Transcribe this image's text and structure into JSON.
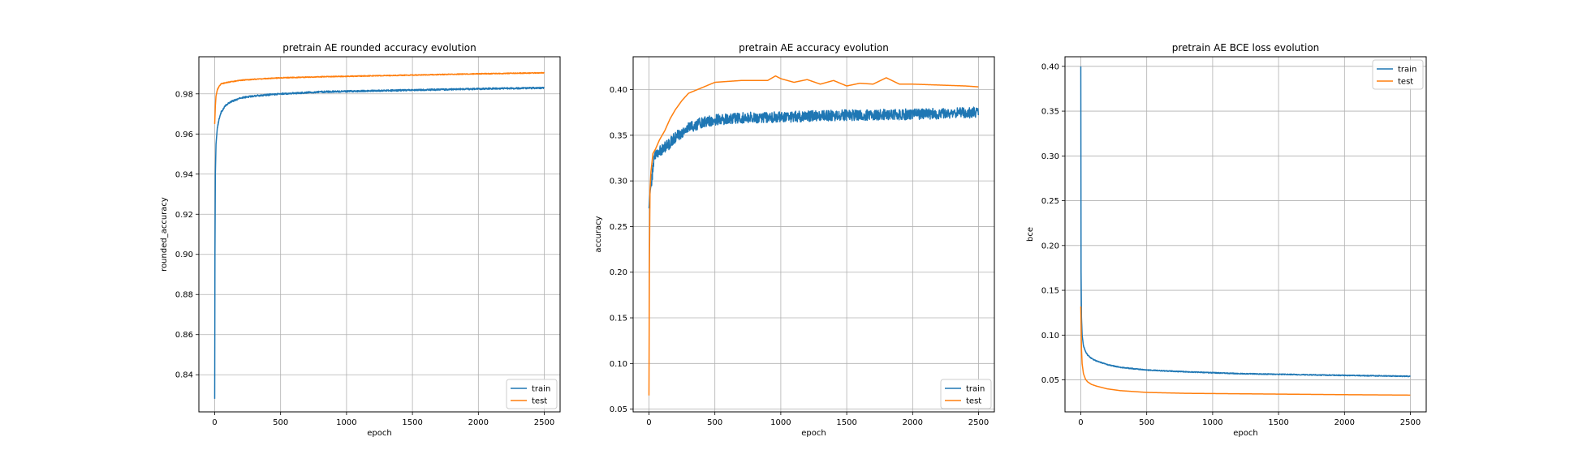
{
  "colors": {
    "train": "#1f77b4",
    "test": "#ff7f0e",
    "grid": "#b0b0b0"
  },
  "chart_data": [
    {
      "type": "line",
      "title": "pretrain AE rounded accuracy evolution",
      "xlabel": "epoch",
      "ylabel": "rounded_accuracy",
      "xlim": [
        -120,
        2620
      ],
      "ylim": [
        0.8215,
        0.9985
      ],
      "xticks": [
        0,
        500,
        1000,
        1500,
        2000,
        2500
      ],
      "xtick_labels": [
        "0",
        "500",
        "1000",
        "1500",
        "2000",
        "2500"
      ],
      "yticks": [
        0.84,
        0.86,
        0.88,
        0.9,
        0.92,
        0.94,
        0.96,
        0.98
      ],
      "ytick_labels": [
        "0.84",
        "0.86",
        "0.88",
        "0.90",
        "0.92",
        "0.94",
        "0.96",
        "0.98"
      ],
      "grid": true,
      "legend": {
        "position": "bottom-right",
        "entries": [
          "train",
          "test"
        ]
      },
      "series": [
        {
          "name": "train",
          "noise": 0.0004,
          "x": [
            0,
            2,
            5,
            10,
            20,
            35,
            50,
            80,
            120,
            200,
            300,
            500,
            800,
            1200,
            1600,
            2000,
            2500
          ],
          "y": [
            0.828,
            0.9,
            0.94,
            0.955,
            0.963,
            0.968,
            0.971,
            0.974,
            0.976,
            0.978,
            0.979,
            0.98,
            0.981,
            0.9815,
            0.982,
            0.9825,
            0.983
          ]
        },
        {
          "name": "test",
          "noise": 0.0002,
          "x": [
            0,
            5,
            10,
            20,
            35,
            50,
            80,
            120,
            200,
            300,
            500,
            800,
            1200,
            1600,
            2000,
            2500
          ],
          "y": [
            0.965,
            0.974,
            0.979,
            0.982,
            0.984,
            0.985,
            0.9855,
            0.986,
            0.9868,
            0.9873,
            0.988,
            0.9885,
            0.989,
            0.9895,
            0.99,
            0.9905
          ]
        }
      ]
    },
    {
      "type": "line",
      "title": "pretrain AE accuracy evolution",
      "xlabel": "epoch",
      "ylabel": "accuracy",
      "xlim": [
        -120,
        2620
      ],
      "ylim": [
        0.047,
        0.436
      ],
      "xticks": [
        0,
        500,
        1000,
        1500,
        2000,
        2500
      ],
      "xtick_labels": [
        "0",
        "500",
        "1000",
        "1500",
        "2000",
        "2500"
      ],
      "yticks": [
        0.05,
        0.1,
        0.15,
        0.2,
        0.25,
        0.3,
        0.35,
        0.4
      ],
      "ytick_labels": [
        "0.05",
        "0.10",
        "0.15",
        "0.20",
        "0.25",
        "0.30",
        "0.35",
        "0.40"
      ],
      "grid": true,
      "legend": {
        "position": "bottom-right",
        "entries": [
          "train",
          "test"
        ]
      },
      "series": [
        {
          "name": "train",
          "noise": 0.006,
          "x": [
            0,
            5,
            10,
            20,
            40,
            60,
            100,
            150,
            200,
            300,
            400,
            500,
            700,
            1000,
            1500,
            2000,
            2500
          ],
          "y": [
            0.27,
            0.28,
            0.29,
            0.3,
            0.325,
            0.33,
            0.335,
            0.34,
            0.348,
            0.358,
            0.364,
            0.367,
            0.369,
            0.37,
            0.372,
            0.373,
            0.375
          ]
        },
        {
          "name": "test",
          "noise": 0.0,
          "x": [
            0,
            3,
            8,
            15,
            30,
            50,
            80,
            120,
            160,
            200,
            250,
            300,
            400,
            500,
            700,
            900,
            960,
            1000,
            1100,
            1200,
            1300,
            1400,
            1500,
            1600,
            1700,
            1800,
            1900,
            2000,
            2200,
            2400,
            2500
          ],
          "y": [
            0.065,
            0.2,
            0.29,
            0.31,
            0.33,
            0.335,
            0.345,
            0.355,
            0.368,
            0.378,
            0.388,
            0.396,
            0.402,
            0.408,
            0.41,
            0.41,
            0.415,
            0.412,
            0.408,
            0.411,
            0.406,
            0.41,
            0.404,
            0.407,
            0.406,
            0.413,
            0.406,
            0.406,
            0.405,
            0.404,
            0.403
          ]
        }
      ]
    },
    {
      "type": "line",
      "title": "pretrain AE BCE loss evolution",
      "xlabel": "epoch",
      "ylabel": "bce",
      "xlim": [
        -120,
        2620
      ],
      "ylim": [
        0.0143,
        0.4107
      ],
      "xticks": [
        0,
        500,
        1000,
        1500,
        2000,
        2500
      ],
      "xtick_labels": [
        "0",
        "500",
        "1000",
        "1500",
        "2000",
        "2500"
      ],
      "yticks": [
        0.05,
        0.1,
        0.15,
        0.2,
        0.25,
        0.3,
        0.35,
        0.4
      ],
      "ytick_labels": [
        "0.05",
        "0.10",
        "0.15",
        "0.20",
        "0.25",
        "0.30",
        "0.35",
        "0.40"
      ],
      "grid": true,
      "legend": {
        "position": "top-right",
        "entries": [
          "train",
          "test"
        ]
      },
      "series": [
        {
          "name": "train",
          "noise": 0.0005,
          "x": [
            0,
            2,
            5,
            10,
            20,
            35,
            50,
            80,
            120,
            200,
            300,
            500,
            800,
            1200,
            1600,
            2000,
            2500
          ],
          "y": [
            0.4,
            0.17,
            0.12,
            0.1,
            0.088,
            0.082,
            0.078,
            0.074,
            0.071,
            0.067,
            0.064,
            0.061,
            0.059,
            0.057,
            0.056,
            0.055,
            0.054
          ]
        },
        {
          "name": "test",
          "noise": 0.0,
          "x": [
            0,
            5,
            10,
            20,
            35,
            50,
            80,
            120,
            200,
            300,
            500,
            800,
            1200,
            1600,
            2000,
            2500
          ],
          "y": [
            0.132,
            0.085,
            0.068,
            0.057,
            0.051,
            0.048,
            0.045,
            0.043,
            0.04,
            0.038,
            0.036,
            0.035,
            0.0345,
            0.034,
            0.0335,
            0.033
          ]
        }
      ]
    }
  ]
}
